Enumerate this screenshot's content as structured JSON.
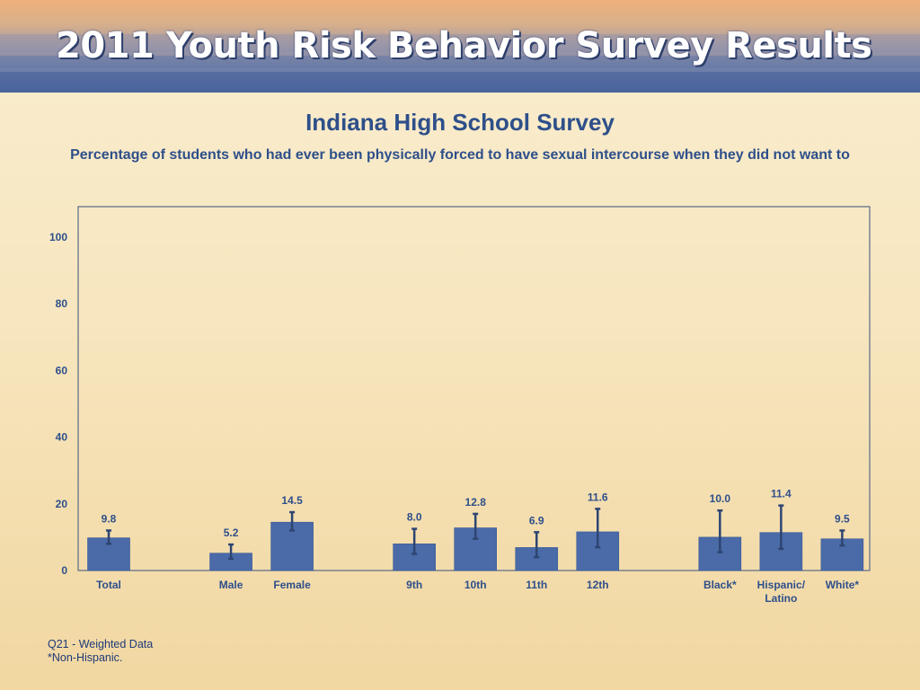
{
  "header": {
    "title": "2011 Youth Risk Behavior Survey Results"
  },
  "colors": {
    "bar": "#4a6ba8",
    "error_bar": "#2e4572",
    "text": "#2e4f8a",
    "axis": "#5a6a8a"
  },
  "chart_data": {
    "type": "bar",
    "title": "Indiana High School Survey",
    "subtitle": "Percentage of students who had ever been physically forced to have sexual intercourse when they did not want to",
    "xlabel": "",
    "ylabel": "",
    "ylim": [
      0,
      100
    ],
    "yticks": [
      0,
      20,
      40,
      60,
      80,
      100
    ],
    "grid": false,
    "legend": "none",
    "categories": [
      {
        "label": "Total",
        "value": 9.8,
        "value_label": "9.8",
        "ci": [
          8.0,
          12.0
        ]
      },
      {
        "label": "",
        "value": null,
        "value_label": "",
        "ci": null
      },
      {
        "label": "Male",
        "value": 5.2,
        "value_label": "5.2",
        "ci": [
          3.5,
          7.8
        ]
      },
      {
        "label": "Female",
        "value": 14.5,
        "value_label": "14.5",
        "ci": [
          12.0,
          17.5
        ]
      },
      {
        "label": "",
        "value": null,
        "value_label": "",
        "ci": null
      },
      {
        "label": "9th",
        "value": 8.0,
        "value_label": "8.0",
        "ci": [
          5.0,
          12.5
        ]
      },
      {
        "label": "10th",
        "value": 12.8,
        "value_label": "12.8",
        "ci": [
          9.5,
          17.0
        ]
      },
      {
        "label": "11th",
        "value": 6.9,
        "value_label": "6.9",
        "ci": [
          4.0,
          11.5
        ]
      },
      {
        "label": "12th",
        "value": 11.6,
        "value_label": "11.6",
        "ci": [
          7.0,
          18.5
        ]
      },
      {
        "label": "",
        "value": null,
        "value_label": "",
        "ci": null
      },
      {
        "label": "Black*",
        "value": 10.0,
        "value_label": "10.0",
        "ci": [
          5.5,
          18.0
        ]
      },
      {
        "label": "Hispanic/\nLatino",
        "value": 11.4,
        "value_label": "11.4",
        "ci": [
          6.5,
          19.5
        ]
      },
      {
        "label": "White*",
        "value": 9.5,
        "value_label": "9.5",
        "ci": [
          7.5,
          12.0
        ]
      }
    ]
  },
  "footnotes": [
    "Q21 - Weighted Data",
    "*Non-Hispanic."
  ]
}
